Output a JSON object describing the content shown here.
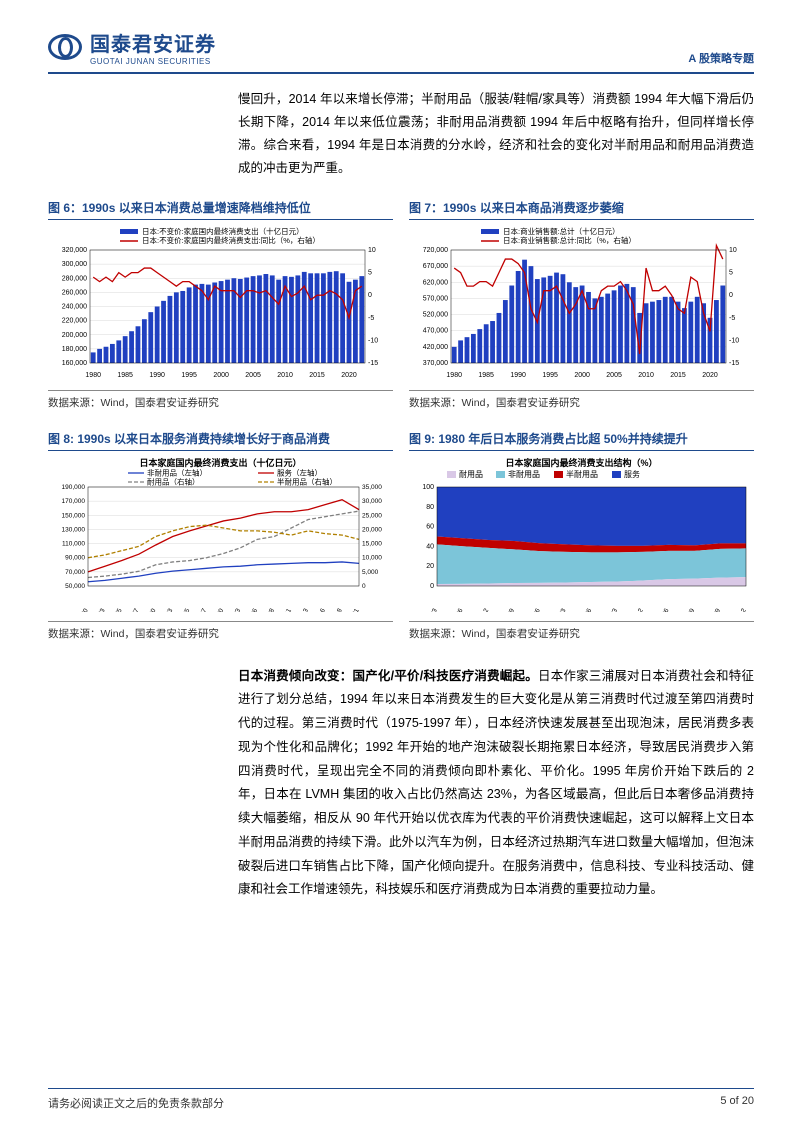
{
  "header": {
    "logo_cn": "国泰君安证券",
    "logo_en": "GUOTAI JUNAN SECURITIES",
    "topic": "A 股策略专题"
  },
  "intro_text": "慢回升，2014 年以来增长停滞；半耐用品（服装/鞋帽/家具等）消费额 1994 年大幅下滑后仍长期下降，2014 年以来低位震荡；非耐用品消费额 1994 年后中枢略有抬升，但同样增长停滞。综合来看，1994 年是日本消费的分水岭，经济和社会的变化对半耐用品和耐用品消费造成的冲击更为严重。",
  "chart6": {
    "title": "图 6：1990s 以来日本消费总量增速降档维持低位",
    "legend": [
      {
        "label": "日本:不变价:家庭国内最终消费支出（十亿日元）",
        "color": "#2040c0",
        "type": "bar"
      },
      {
        "label": "日本:不变价:家庭国内最终消费支出:同比（%，右轴）",
        "color": "#c00000",
        "type": "line"
      }
    ],
    "ylim_left": [
      160000,
      320000
    ],
    "ytick_left": [
      160000,
      180000,
      200000,
      220000,
      240000,
      260000,
      280000,
      300000,
      320000
    ],
    "ylim_right": [
      -15,
      10
    ],
    "ytick_right": [
      -15,
      -10,
      -5,
      0,
      5,
      10
    ],
    "x_ticks": [
      1980,
      1985,
      1990,
      1995,
      2000,
      2005,
      2010,
      2015,
      2020
    ],
    "bars": [
      175000,
      180000,
      183000,
      187000,
      192000,
      198000,
      205000,
      212000,
      222000,
      232000,
      240000,
      248000,
      255000,
      260000,
      262000,
      267000,
      271000,
      272000,
      271000,
      274000,
      276000,
      278000,
      280000,
      279000,
      281000,
      283000,
      284000,
      286000,
      284000,
      278000,
      283000,
      282000,
      284000,
      289000,
      287000,
      287000,
      287000,
      289000,
      290000,
      287000,
      275000,
      278000,
      283000
    ],
    "line": [
      4,
      3,
      4,
      3,
      5,
      4,
      5,
      5,
      6,
      6,
      5,
      4,
      3,
      2,
      3,
      3,
      2,
      1,
      -1,
      2,
      1,
      1,
      1,
      -0.5,
      1,
      1,
      0.5,
      1,
      -0.5,
      -2,
      2,
      -0.3,
      0.5,
      2,
      -1,
      0,
      0,
      1,
      0.3,
      -1,
      -5,
      1,
      2
    ],
    "grid_color": "#d9d9d9",
    "bg": "#fff",
    "font": 8
  },
  "chart7": {
    "title": "图 7：1990s 以来日本商品消费逐步萎缩",
    "legend": [
      {
        "label": "日本:商业销售额:总计（十亿日元）",
        "color": "#2040c0",
        "type": "bar"
      },
      {
        "label": "日本:商业销售额:总计:同比（%，右轴）",
        "color": "#c00000",
        "type": "line"
      }
    ],
    "ylim_left": [
      370000,
      720000
    ],
    "ytick_left": [
      370000,
      420000,
      470000,
      520000,
      570000,
      620000,
      670000,
      720000
    ],
    "ylim_right": [
      -15,
      10
    ],
    "ytick_right": [
      -15,
      -10,
      -5,
      0,
      5,
      10
    ],
    "x_ticks": [
      1980,
      1985,
      1990,
      1995,
      2000,
      2005,
      2010,
      2015,
      2020
    ],
    "bars": [
      420000,
      440000,
      450000,
      460000,
      475000,
      490000,
      500000,
      525000,
      565000,
      610000,
      655000,
      690000,
      670000,
      630000,
      635000,
      640000,
      650000,
      645000,
      620000,
      605000,
      610000,
      590000,
      570000,
      575000,
      585000,
      595000,
      610000,
      615000,
      605000,
      525000,
      555000,
      560000,
      565000,
      575000,
      575000,
      560000,
      540000,
      560000,
      575000,
      555000,
      510000,
      565000,
      610000
    ],
    "line": [
      6,
      5,
      2,
      2,
      3,
      3,
      2,
      5,
      8,
      8,
      7,
      5,
      -3,
      -6,
      1,
      1,
      2,
      -1,
      -4,
      -2,
      1,
      -3,
      -3,
      1,
      2,
      2,
      3,
      1,
      -2,
      -13,
      6,
      1,
      1,
      2,
      0,
      -3,
      -4,
      4,
      3,
      -4,
      -8,
      11,
      8
    ],
    "grid_color": "#d9d9d9",
    "bg": "#fff",
    "font": 8
  },
  "chart8": {
    "title": "图 8: 1990s 以来日本服务消费持续增长好于商品消费",
    "chart_title": "日本家庭国内最终消费支出（十亿日元）",
    "legend": [
      {
        "label": "非耐用品（左轴）",
        "color": "#2040c0",
        "dash": "0"
      },
      {
        "label": "服务（左轴）",
        "color": "#c00000",
        "dash": "0"
      },
      {
        "label": "耐用品（右轴）",
        "color": "#808080",
        "dash": "4,2"
      },
      {
        "label": "半耐用品（右轴）",
        "color": "#b08000",
        "dash": "4,2"
      }
    ],
    "ylim_left": [
      50000,
      190000
    ],
    "ytick_left": [
      50000,
      70000,
      90000,
      110000,
      130000,
      150000,
      170000,
      190000
    ],
    "ylim_right": [
      0,
      35000
    ],
    "ytick_right": [
      0,
      5000,
      10000,
      15000,
      20000,
      25000,
      30000,
      35000
    ],
    "x_labels": [
      "1980",
      "1983",
      "1985",
      "1987",
      "1990",
      "1993",
      "1995",
      "1997",
      "2000",
      "2003",
      "2006",
      "2008",
      "2011",
      "2013",
      "2016",
      "2018",
      "2021"
    ],
    "non_durable": [
      56000,
      58000,
      61000,
      64000,
      68000,
      71000,
      73000,
      75000,
      77000,
      78000,
      80000,
      81000,
      82000,
      83000,
      83000,
      84000,
      82000
    ],
    "services": [
      70000,
      78000,
      86000,
      95000,
      108000,
      120000,
      128000,
      135000,
      142000,
      146000,
      152000,
      155000,
      155000,
      158000,
      165000,
      172000,
      158000
    ],
    "durable": [
      3000,
      3500,
      4200,
      5200,
      7500,
      8500,
      9000,
      10000,
      11500,
      13500,
      16500,
      17500,
      20500,
      23500,
      24500,
      25500,
      26500
    ],
    "semi_durable": [
      10000,
      11000,
      12500,
      14000,
      17500,
      19500,
      21000,
      21500,
      20500,
      19500,
      19500,
      19000,
      18000,
      19500,
      18500,
      18000,
      16500
    ],
    "grid_color": "#d9d9d9",
    "bg": "#fff",
    "font": 8
  },
  "chart9": {
    "title": "图 9: 1980 年后日本服务消费占比超 50%并持续提升",
    "chart_title": "日本家庭国内最终消费支出结构（%）",
    "legend": [
      {
        "label": "耐用品",
        "color": "#d9c8e6"
      },
      {
        "label": "非耐用品",
        "color": "#7cc5d9"
      },
      {
        "label": "半耐用品",
        "color": "#c00000"
      },
      {
        "label": "服务",
        "color": "#2040c0"
      }
    ],
    "ylim": [
      0,
      100
    ],
    "yticks": [
      0,
      20,
      40,
      60,
      80,
      100
    ],
    "x_labels": [
      "1980-03",
      "1984-06",
      "1987-12",
      "1991-09",
      "1995-06",
      "1999-03",
      "2004-06",
      "2007-03",
      "2010-12",
      "2013-06",
      "2016-09",
      "2020-09",
      "2022-12"
    ],
    "durable": [
      2,
      2.2,
      2.5,
      3,
      3.2,
      3.5,
      4,
      4.5,
      5.5,
      7,
      7.5,
      8.5,
      9
    ],
    "non_durable": [
      40,
      38,
      36,
      34,
      32,
      31,
      30,
      29.5,
      29,
      28.5,
      28,
      29,
      29
    ],
    "semi_durable": [
      8,
      8,
      8,
      8.5,
      8,
      7.5,
      7,
      6.5,
      6,
      6,
      5.5,
      5.5,
      5
    ],
    "services": [
      50,
      51.8,
      53.5,
      54.5,
      56.8,
      58,
      59,
      59.5,
      59.5,
      58.5,
      59,
      57,
      57
    ],
    "grid_color": "#d9d9d9",
    "bg": "#fff",
    "font": 8
  },
  "source": "数据来源：Wind，国泰君安证券研究",
  "body_heading": "日本消费倾向改变：国产化/平价/科技医疗消费崛起。",
  "body_text": "日本作家三浦展对日本消费社会和特征进行了划分总结，1994 年以来日本消费发生的巨大变化是从第三消费时代过渡至第四消费时代的过程。第三消费时代（1975-1997 年），日本经济快速发展甚至出现泡沫，居民消费多表现为个性化和品牌化；1992 年开始的地产泡沫破裂长期拖累日本经济，导致居民消费步入第四消费时代，呈现出完全不同的消费倾向即朴素化、平价化。1995 年房价开始下跌后的 2 年，日本在 LVMH 集团的收入占比仍然高达 23%，为各区域最高，但此后日本奢侈品消费持续大幅萎缩，相反从 90 年代开始以优衣库为代表的平价消费快速崛起，这可以解释上文日本半耐用品消费的持续下滑。此外以汽车为例，日本经济过热期汽车进口数量大幅增加，但泡沫破裂后进口车销售占比下降，国产化倾向提升。在服务消费中，信息科技、专业科技活动、健康和社会工作增速领先，科技娱乐和医疗消费成为日本消费的重要拉动力量。",
  "footer": {
    "disclaimer": "请务必阅读正文之后的免责条款部分",
    "page": "5 of 20"
  }
}
